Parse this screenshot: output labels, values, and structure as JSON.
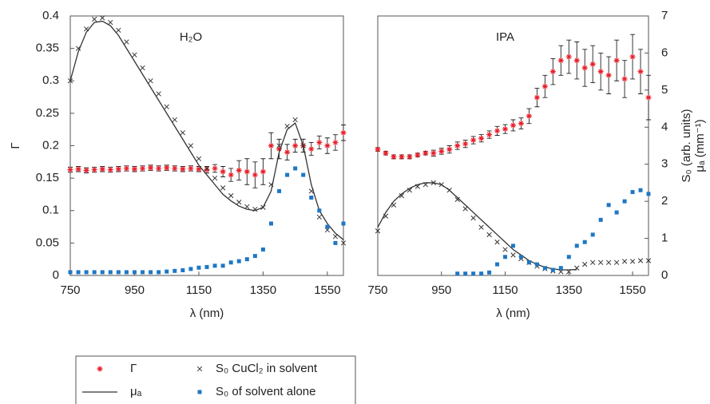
{
  "chart_data": [
    {
      "type": "line",
      "panel_label": "H₂O",
      "xlabel": "λ (nm)",
      "ylabel": [
        "Γ"
      ],
      "yaxis_side": "left",
      "xlim": [
        750,
        1600
      ],
      "xticks": [
        750,
        950,
        1150,
        1350,
        1550
      ],
      "ylim": [
        0,
        0.4
      ],
      "yticks": [
        0,
        0.05,
        0.1,
        0.15,
        0.2,
        0.25,
        0.3,
        0.35,
        0.4
      ],
      "x": [
        750,
        775,
        800,
        825,
        850,
        875,
        900,
        925,
        950,
        975,
        1000,
        1025,
        1050,
        1075,
        1100,
        1125,
        1150,
        1175,
        1200,
        1225,
        1250,
        1275,
        1300,
        1325,
        1350,
        1375,
        1400,
        1425,
        1450,
        1475,
        1500,
        1525,
        1550,
        1575,
        1600
      ],
      "series": [
        {
          "name": "Γ",
          "color": "#e8202a",
          "marker": "asterisk",
          "values": [
            0.163,
            0.164,
            0.162,
            0.163,
            0.164,
            0.163,
            0.164,
            0.165,
            0.164,
            0.165,
            0.166,
            0.165,
            0.166,
            0.165,
            0.164,
            0.165,
            0.164,
            0.163,
            0.165,
            0.16,
            0.155,
            0.162,
            0.16,
            0.155,
            0.16,
            0.2,
            0.195,
            0.19,
            0.2,
            0.2,
            0.195,
            0.205,
            0.2,
            0.205,
            0.22
          ],
          "errors": [
            0.004,
            0.004,
            0.004,
            0.004,
            0.004,
            0.004,
            0.004,
            0.004,
            0.004,
            0.004,
            0.004,
            0.004,
            0.004,
            0.004,
            0.004,
            0.004,
            0.004,
            0.005,
            0.006,
            0.008,
            0.01,
            0.015,
            0.02,
            0.02,
            0.02,
            0.02,
            0.015,
            0.012,
            0.01,
            0.01,
            0.01,
            0.01,
            0.012,
            0.012,
            0.012
          ]
        },
        {
          "name": "S₀ CuCl₂ in solvent",
          "color": "#333333",
          "marker": "x",
          "values": [
            0.3,
            0.35,
            0.38,
            0.395,
            0.397,
            0.39,
            0.378,
            0.36,
            0.34,
            0.32,
            0.3,
            0.28,
            0.26,
            0.24,
            0.22,
            0.2,
            0.18,
            0.165,
            0.15,
            0.135,
            0.123,
            0.113,
            0.106,
            0.102,
            0.105,
            0.14,
            0.2,
            0.23,
            0.24,
            0.2,
            0.13,
            0.09,
            0.07,
            0.06,
            0.05
          ]
        },
        {
          "name": "μₐ",
          "color": "#333333",
          "marker": "none",
          "values": [
            0.3,
            0.345,
            0.375,
            0.39,
            0.392,
            0.385,
            0.37,
            0.35,
            0.33,
            0.31,
            0.29,
            0.27,
            0.25,
            0.23,
            0.21,
            0.19,
            0.17,
            0.155,
            0.14,
            0.125,
            0.115,
            0.107,
            0.102,
            0.1,
            0.105,
            0.13,
            0.19,
            0.225,
            0.235,
            0.2,
            0.14,
            0.1,
            0.08,
            0.065,
            0.055
          ]
        },
        {
          "name": "S₀ of solvent alone",
          "color": "#1f77c4",
          "marker": "square",
          "values": [
            0.005,
            0.005,
            0.005,
            0.005,
            0.005,
            0.005,
            0.005,
            0.005,
            0.005,
            0.005,
            0.005,
            0.005,
            0.006,
            0.007,
            0.008,
            0.01,
            0.012,
            0.013,
            0.015,
            0.015,
            0.02,
            0.022,
            0.025,
            0.03,
            0.04,
            0.08,
            0.13,
            0.155,
            0.165,
            0.155,
            0.12,
            0.1,
            0.075,
            0.05,
            0.08
          ]
        }
      ]
    },
    {
      "type": "line",
      "panel_label": "IPA",
      "xlabel": "λ (nm)",
      "ylabel": [
        "S₀ (arb. units)",
        "μₐ (mm⁻¹)"
      ],
      "yaxis_side": "right",
      "xlim": [
        750,
        1600
      ],
      "xticks": [
        750,
        950,
        1150,
        1350,
        1550
      ],
      "ylim": [
        0,
        7
      ],
      "yticks": [
        0,
        1,
        2,
        3,
        4,
        5,
        6,
        7
      ],
      "x": [
        750,
        775,
        800,
        825,
        850,
        875,
        900,
        925,
        950,
        975,
        1000,
        1025,
        1050,
        1075,
        1100,
        1125,
        1150,
        1175,
        1200,
        1225,
        1250,
        1275,
        1300,
        1325,
        1350,
        1375,
        1400,
        1425,
        1450,
        1475,
        1500,
        1525,
        1550,
        1575,
        1600
      ],
      "series": [
        {
          "color": "#e8202a",
          "marker": "asterisk",
          "values": [
            3.4,
            3.3,
            3.2,
            3.2,
            3.2,
            3.25,
            3.3,
            3.3,
            3.35,
            3.4,
            3.5,
            3.55,
            3.65,
            3.7,
            3.8,
            3.9,
            3.95,
            4.05,
            4.1,
            4.3,
            4.8,
            5.1,
            5.5,
            5.8,
            5.9,
            5.8,
            5.6,
            5.7,
            5.5,
            5.4,
            5.8,
            5.3,
            5.9,
            5.5,
            4.8
          ],
          "errors": [
            0.05,
            0.05,
            0.05,
            0.05,
            0.05,
            0.05,
            0.05,
            0.08,
            0.08,
            0.1,
            0.1,
            0.1,
            0.1,
            0.1,
            0.1,
            0.12,
            0.12,
            0.15,
            0.15,
            0.2,
            0.25,
            0.3,
            0.35,
            0.4,
            0.45,
            0.5,
            0.5,
            0.5,
            0.5,
            0.5,
            0.55,
            0.5,
            0.6,
            0.6,
            0.6
          ]
        },
        {
          "color": "#333333",
          "marker": "x",
          "values": [
            1.2,
            1.6,
            1.9,
            2.15,
            2.3,
            2.4,
            2.45,
            2.5,
            2.45,
            2.3,
            2.05,
            1.8,
            1.55,
            1.3,
            1.1,
            0.9,
            0.7,
            0.55,
            0.45,
            0.35,
            0.25,
            0.18,
            0.12,
            0.1,
            0.1,
            0.2,
            0.3,
            0.35,
            0.35,
            0.35,
            0.35,
            0.38,
            0.38,
            0.4,
            0.4
          ]
        },
        {
          "color": "#333333",
          "marker": "none",
          "values": [
            1.3,
            1.7,
            2.0,
            2.2,
            2.35,
            2.45,
            2.5,
            2.5,
            2.45,
            2.3,
            2.1,
            1.9,
            1.7,
            1.5,
            1.3,
            1.1,
            0.9,
            0.7,
            0.55,
            0.4,
            0.3,
            0.22,
            0.18,
            0.15,
            0.15,
            0.16,
            null,
            null,
            null,
            null,
            null,
            null,
            null,
            null,
            null
          ]
        },
        {
          "color": "#1f77c4",
          "marker": "square",
          "values": [
            null,
            null,
            null,
            null,
            null,
            null,
            null,
            null,
            null,
            null,
            0.05,
            0.05,
            0.05,
            0.05,
            0.08,
            0.3,
            0.5,
            0.8,
            0.5,
            0.35,
            0.3,
            0.2,
            0.15,
            0.2,
            0.5,
            0.8,
            0.9,
            1.1,
            1.5,
            1.9,
            1.7,
            2.0,
            2.25,
            2.3,
            2.2
          ]
        }
      ]
    }
  ]
}
